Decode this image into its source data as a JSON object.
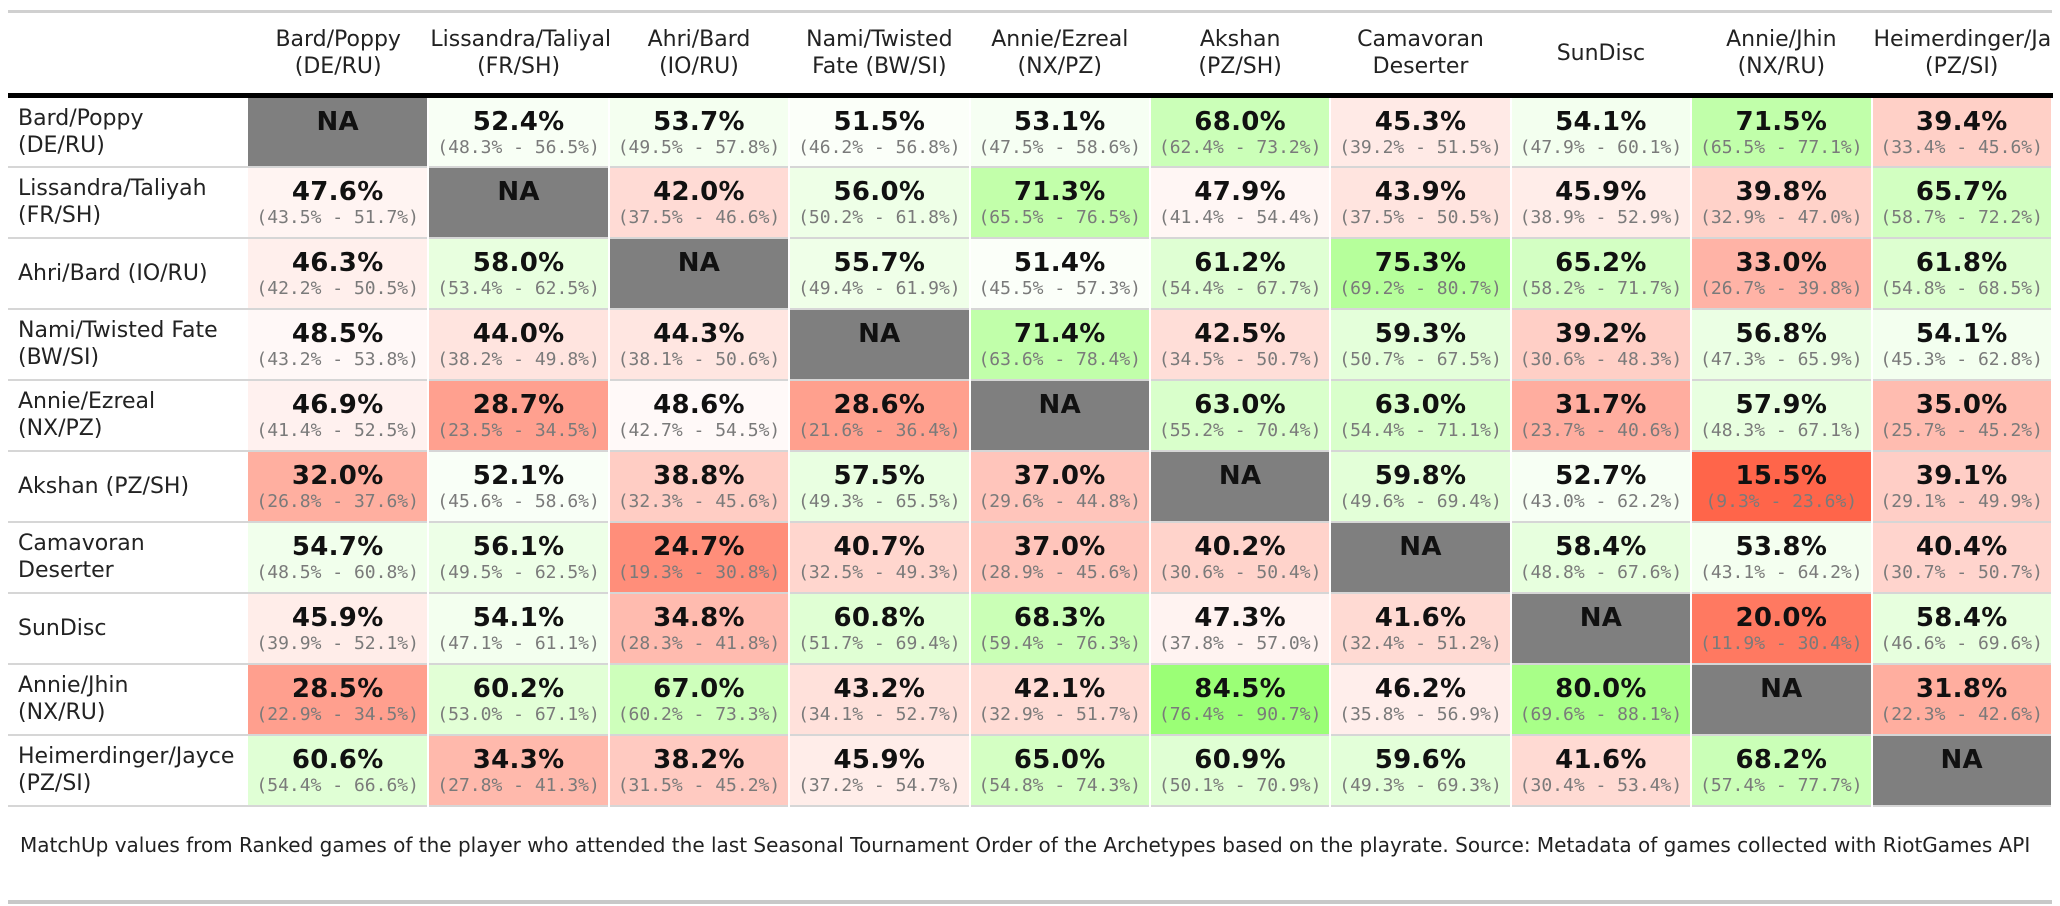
{
  "chart_data": {
    "type": "table",
    "caption": "MatchUp values from Ranked games of the player who attended the last Seasonal Tournament Order of the Archetypes based on the playrate. Source: Metadata of games collected with RiotGames API",
    "columns": [
      [
        "Bard/Poppy",
        "(DE/RU)"
      ],
      [
        "Lissandra/Taliyah",
        "(FR/SH)"
      ],
      [
        "Ahri/Bard",
        "(IO/RU)"
      ],
      [
        "Nami/Twisted",
        "Fate (BW/SI)"
      ],
      [
        "Annie/Ezreal",
        "(NX/PZ)"
      ],
      [
        "Akshan",
        "(PZ/SH)"
      ],
      [
        "Camavoran",
        "Deserter"
      ],
      [
        "SunDisc"
      ],
      [
        "Annie/Jhin",
        "(NX/RU)"
      ],
      [
        "Heimerdinger/Jayce",
        "(PZ/SI)"
      ]
    ],
    "rows": [
      [
        "Bard/Poppy",
        "(DE/RU)"
      ],
      [
        "Lissandra/Taliyah",
        "(FR/SH)"
      ],
      [
        "Ahri/Bard (IO/RU)"
      ],
      [
        "Nami/Twisted Fate",
        "(BW/SI)"
      ],
      [
        "Annie/Ezreal",
        "(NX/PZ)"
      ],
      [
        "Akshan (PZ/SH)"
      ],
      [
        "Camavoran",
        "Deserter"
      ],
      [
        "SunDisc"
      ],
      [
        "Annie/Jhin",
        "(NX/RU)"
      ],
      [
        "Heimerdinger/Jayce",
        "(PZ/SI)"
      ]
    ],
    "na_label": "NA",
    "values": [
      [
        null,
        52.4,
        53.7,
        51.5,
        53.1,
        68.0,
        45.3,
        54.1,
        71.5,
        39.4
      ],
      [
        47.6,
        null,
        42.0,
        56.0,
        71.3,
        47.9,
        43.9,
        45.9,
        39.8,
        65.7
      ],
      [
        46.3,
        58.0,
        null,
        55.7,
        51.4,
        61.2,
        75.3,
        65.2,
        33.0,
        61.8
      ],
      [
        48.5,
        44.0,
        44.3,
        null,
        71.4,
        42.5,
        59.3,
        39.2,
        56.8,
        54.1
      ],
      [
        46.9,
        28.7,
        48.6,
        28.6,
        null,
        63.0,
        63.0,
        31.7,
        57.9,
        35.0
      ],
      [
        32.0,
        52.1,
        38.8,
        57.5,
        37.0,
        null,
        59.8,
        52.7,
        15.5,
        39.1
      ],
      [
        54.7,
        56.1,
        24.7,
        40.7,
        37.0,
        40.2,
        null,
        58.4,
        53.8,
        40.4
      ],
      [
        45.9,
        54.1,
        34.8,
        60.8,
        68.3,
        47.3,
        41.6,
        null,
        20.0,
        58.4
      ],
      [
        28.5,
        60.2,
        67.0,
        43.2,
        42.1,
        84.5,
        46.2,
        80.0,
        null,
        31.8
      ],
      [
        60.6,
        34.3,
        38.2,
        45.9,
        65.0,
        60.9,
        59.6,
        41.6,
        68.2,
        null
      ]
    ],
    "intervals": [
      [
        null,
        [
          48.3,
          56.5
        ],
        [
          49.5,
          57.8
        ],
        [
          46.2,
          56.8
        ],
        [
          47.5,
          58.6
        ],
        [
          62.4,
          73.2
        ],
        [
          39.2,
          51.5
        ],
        [
          47.9,
          60.1
        ],
        [
          65.5,
          77.1
        ],
        [
          33.4,
          45.6
        ]
      ],
      [
        [
          43.5,
          51.7
        ],
        null,
        [
          37.5,
          46.6
        ],
        [
          50.2,
          61.8
        ],
        [
          65.5,
          76.5
        ],
        [
          41.4,
          54.4
        ],
        [
          37.5,
          50.5
        ],
        [
          38.9,
          52.9
        ],
        [
          32.9,
          47.0
        ],
        [
          58.7,
          72.2
        ]
      ],
      [
        [
          42.2,
          50.5
        ],
        [
          53.4,
          62.5
        ],
        null,
        [
          49.4,
          61.9
        ],
        [
          45.5,
          57.3
        ],
        [
          54.4,
          67.7
        ],
        [
          69.2,
          80.7
        ],
        [
          58.2,
          71.7
        ],
        [
          26.7,
          39.8
        ],
        [
          54.8,
          68.5
        ]
      ],
      [
        [
          43.2,
          53.8
        ],
        [
          38.2,
          49.8
        ],
        [
          38.1,
          50.6
        ],
        null,
        [
          63.6,
          78.4
        ],
        [
          34.5,
          50.7
        ],
        [
          50.7,
          67.5
        ],
        [
          30.6,
          48.3
        ],
        [
          47.3,
          65.9
        ],
        [
          45.3,
          62.8
        ]
      ],
      [
        [
          41.4,
          52.5
        ],
        [
          23.5,
          34.5
        ],
        [
          42.7,
          54.5
        ],
        [
          21.6,
          36.4
        ],
        null,
        [
          55.2,
          70.4
        ],
        [
          54.4,
          71.1
        ],
        [
          23.7,
          40.6
        ],
        [
          48.3,
          67.1
        ],
        [
          25.7,
          45.2
        ]
      ],
      [
        [
          26.8,
          37.6
        ],
        [
          45.6,
          58.6
        ],
        [
          32.3,
          45.6
        ],
        [
          49.3,
          65.5
        ],
        [
          29.6,
          44.8
        ],
        null,
        [
          49.6,
          69.4
        ],
        [
          43.0,
          62.2
        ],
        [
          9.3,
          23.6
        ],
        [
          29.1,
          49.9
        ]
      ],
      [
        [
          48.5,
          60.8
        ],
        [
          49.5,
          62.5
        ],
        [
          19.3,
          30.8
        ],
        [
          32.5,
          49.3
        ],
        [
          28.9,
          45.6
        ],
        [
          30.6,
          50.4
        ],
        null,
        [
          48.8,
          67.6
        ],
        [
          43.1,
          64.2
        ],
        [
          30.7,
          50.7
        ]
      ],
      [
        [
          39.9,
          52.1
        ],
        [
          47.1,
          61.1
        ],
        [
          28.3,
          41.8
        ],
        [
          51.7,
          69.4
        ],
        [
          59.4,
          76.3
        ],
        [
          37.8,
          57.0
        ],
        [
          32.4,
          51.2
        ],
        null,
        [
          11.9,
          30.4
        ],
        [
          46.6,
          69.6
        ]
      ],
      [
        [
          22.9,
          34.5
        ],
        [
          53.0,
          67.1
        ],
        [
          60.2,
          73.3
        ],
        [
          34.1,
          52.7
        ],
        [
          32.9,
          51.7
        ],
        [
          76.4,
          90.7
        ],
        [
          35.8,
          56.9
        ],
        [
          69.6,
          88.1
        ],
        null,
        [
          22.3,
          42.6
        ]
      ],
      [
        [
          54.4,
          66.6
        ],
        [
          27.8,
          41.3
        ],
        [
          31.5,
          45.2
        ],
        [
          37.2,
          54.7
        ],
        [
          54.8,
          74.3
        ],
        [
          50.1,
          70.9
        ],
        [
          49.3,
          69.3
        ],
        [
          30.4,
          53.4
        ],
        [
          57.4,
          77.7
        ],
        null
      ]
    ],
    "color_scale": {
      "low": "#ff6347",
      "mid": "#ffffff",
      "high": "#9aff74",
      "na": "#7f7f7f",
      "midpoint": 50
    }
  }
}
